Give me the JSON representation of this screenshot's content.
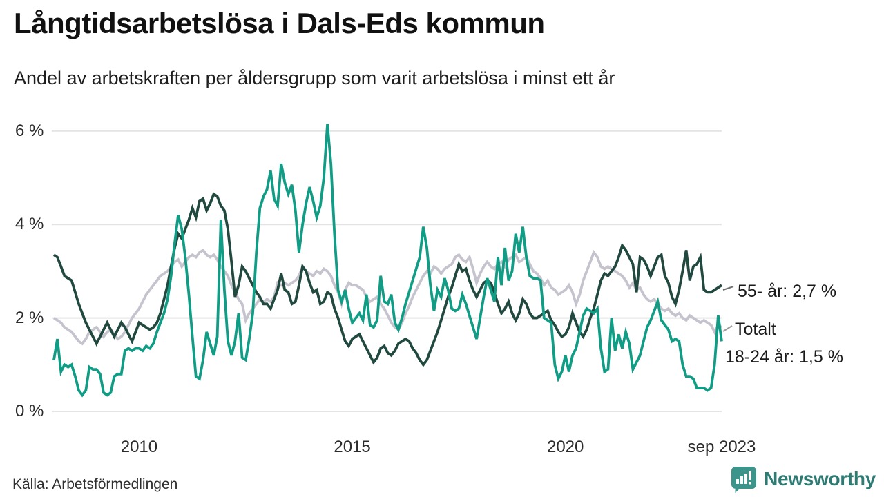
{
  "header": {
    "title": "Långtidsarbetslösa i Dals-Eds kommun",
    "subtitle": "Andel av arbetskraften per åldersgrupp som varit arbetslösa i minst ett år"
  },
  "source": {
    "label": "Källa: Arbetsförmedlingen"
  },
  "brand": {
    "name": "Newsworthy",
    "logo_icon": "speech-bubble-bar-chart-icon",
    "logo_bubble_color": "#3d948b",
    "logo_text_color": "#2e7b74"
  },
  "chart_data": {
    "type": "line",
    "title": "Långtidsarbetslösa i Dals-Eds kommun",
    "x_frequency": "monthly",
    "x_start": "2008-01",
    "x_end": "2023-09",
    "ylim": [
      0,
      6.5
    ],
    "grid": "horizontal-only",
    "legend_position": "right-edge-annotations",
    "colors": {
      "grid": "#e4e4e4",
      "axis_text": "#2b2b2b"
    },
    "y_ticks": [
      {
        "value": 0,
        "label": "0 %"
      },
      {
        "value": 2,
        "label": "2 %"
      },
      {
        "value": 4,
        "label": "4 %"
      },
      {
        "value": 6,
        "label": "6 %"
      }
    ],
    "x_ticks": [
      {
        "month_index": 24,
        "label": "2010"
      },
      {
        "month_index": 84,
        "label": "2015"
      },
      {
        "month_index": 144,
        "label": "2020"
      },
      {
        "month_index": 188,
        "label": "sep 2023"
      }
    ],
    "series": [
      {
        "id": "total",
        "name": "Totalt",
        "color": "#c5c4ce",
        "annotation": "Totalt",
        "values": [
          2.0,
          1.95,
          1.9,
          1.8,
          1.75,
          1.7,
          1.6,
          1.5,
          1.45,
          1.55,
          1.7,
          1.75,
          1.8,
          1.7,
          1.6,
          1.7,
          1.75,
          1.65,
          1.55,
          1.6,
          1.7,
          1.85,
          2.0,
          2.1,
          2.2,
          2.35,
          2.5,
          2.6,
          2.7,
          2.8,
          2.9,
          2.95,
          3.0,
          3.1,
          3.2,
          3.25,
          3.1,
          3.2,
          3.3,
          3.35,
          3.3,
          3.4,
          3.45,
          3.35,
          3.3,
          3.35,
          3.25,
          3.1,
          3.0,
          2.9,
          2.7,
          2.55,
          2.4,
          2.3,
          1.95,
          2.1,
          2.2,
          2.3,
          2.4,
          2.35,
          2.4,
          2.35,
          2.45,
          2.75,
          2.7,
          2.75,
          2.7,
          2.75,
          2.8,
          2.9,
          3.1,
          3.0,
          2.95,
          2.9,
          3.0,
          2.95,
          3.05,
          3.0,
          2.9,
          2.7,
          2.55,
          2.3,
          2.6,
          2.75,
          2.7,
          2.7,
          2.65,
          2.6,
          2.45,
          2.35,
          2.4,
          2.45,
          2.3,
          2.2,
          2.05,
          1.9,
          1.8,
          1.75,
          1.9,
          2.1,
          2.25,
          2.45,
          2.6,
          2.75,
          2.9,
          3.0,
          2.95,
          3.1,
          3.05,
          2.95,
          3.05,
          3.1,
          3.15,
          3.3,
          3.35,
          3.25,
          3.2,
          3.3,
          3.05,
          2.75,
          2.95,
          3.1,
          3.2,
          3.1,
          3.05,
          3.15,
          3.2,
          3.1,
          3.25,
          3.3,
          3.35,
          3.2,
          3.25,
          3.3,
          3.15,
          3.0,
          2.95,
          2.85,
          2.7,
          2.8,
          2.65,
          2.6,
          2.5,
          2.55,
          2.6,
          2.7,
          2.55,
          2.3,
          2.5,
          2.8,
          3.0,
          3.2,
          3.4,
          3.3,
          3.1,
          3.05,
          3.1,
          3.05,
          3.0,
          2.95,
          2.9,
          2.8,
          2.65,
          2.75,
          2.6,
          2.65,
          2.5,
          2.4,
          2.35,
          2.4,
          2.3,
          2.2,
          2.15,
          2.2,
          2.1,
          2.05,
          2.1,
          2.0,
          1.95,
          2.05,
          2.0,
          1.95,
          1.9,
          1.95,
          1.9,
          1.85,
          1.7,
          1.85,
          1.8
        ]
      },
      {
        "id": "55plus",
        "name": "55- år",
        "color": "#21493f",
        "annotation": "55- år: 2,7 %",
        "end_value_label": "2,7 %",
        "values": [
          3.35,
          3.3,
          3.1,
          2.9,
          2.85,
          2.8,
          2.55,
          2.3,
          2.1,
          1.9,
          1.75,
          1.6,
          1.45,
          1.6,
          1.75,
          1.9,
          1.75,
          1.6,
          1.75,
          1.9,
          1.8,
          1.65,
          1.5,
          1.7,
          1.9,
          1.85,
          1.8,
          1.75,
          1.8,
          1.9,
          2.1,
          2.4,
          2.7,
          3.1,
          3.5,
          3.8,
          3.7,
          3.9,
          4.1,
          4.35,
          4.15,
          4.5,
          4.55,
          4.3,
          4.45,
          4.65,
          4.6,
          4.4,
          4.3,
          3.9,
          3.2,
          2.45,
          2.7,
          3.1,
          3.0,
          2.85,
          2.7,
          2.55,
          2.45,
          2.3,
          2.3,
          2.2,
          2.4,
          2.6,
          2.95,
          2.6,
          2.55,
          2.3,
          2.35,
          2.7,
          3.1,
          3.0,
          2.75,
          2.55,
          2.6,
          2.3,
          2.35,
          2.55,
          2.5,
          2.2,
          2.0,
          1.75,
          1.5,
          1.4,
          1.55,
          1.6,
          1.65,
          1.5,
          1.35,
          1.2,
          1.05,
          1.15,
          1.35,
          1.4,
          1.25,
          1.2,
          1.3,
          1.45,
          1.5,
          1.55,
          1.5,
          1.35,
          1.25,
          1.1,
          1.0,
          1.1,
          1.3,
          1.5,
          1.7,
          1.95,
          2.2,
          2.45,
          2.65,
          2.9,
          3.15,
          3.0,
          3.05,
          2.8,
          2.6,
          2.45,
          2.6,
          2.75,
          2.8,
          2.75,
          2.55,
          2.3,
          2.1,
          2.2,
          2.35,
          2.1,
          1.95,
          2.1,
          2.4,
          2.3,
          2.1,
          2.0,
          2.0,
          2.05,
          2.1,
          2.15,
          1.95,
          1.85,
          1.7,
          1.6,
          1.65,
          1.8,
          2.1,
          1.9,
          1.7,
          1.6,
          1.75,
          2.0,
          2.2,
          2.5,
          2.8,
          2.95,
          2.9,
          3.0,
          3.1,
          3.3,
          3.55,
          3.45,
          3.3,
          3.15,
          2.55,
          3.3,
          3.25,
          3.1,
          2.9,
          3.1,
          3.3,
          3.35,
          2.9,
          2.75,
          2.45,
          2.3,
          2.6,
          3.0,
          3.45,
          2.8,
          3.1,
          3.15,
          3.3,
          2.6,
          2.55,
          2.55,
          2.6,
          2.65,
          2.7
        ]
      },
      {
        "id": "18-24",
        "name": "18-24 år",
        "color": "#119c85",
        "annotation": "18-24 år: 1,5 %",
        "end_value_label": "1,5 %",
        "values": [
          1.1,
          1.55,
          0.85,
          1.0,
          0.95,
          1.0,
          0.75,
          0.45,
          0.35,
          0.45,
          0.95,
          0.9,
          0.9,
          0.8,
          0.4,
          0.35,
          0.4,
          0.75,
          0.8,
          0.8,
          1.3,
          1.35,
          1.3,
          1.35,
          1.35,
          1.3,
          1.4,
          1.35,
          1.45,
          1.7,
          1.9,
          2.1,
          2.4,
          2.9,
          3.6,
          4.2,
          3.9,
          3.3,
          2.5,
          1.6,
          0.75,
          0.7,
          1.1,
          1.7,
          1.45,
          1.2,
          1.6,
          4.1,
          2.6,
          1.5,
          1.2,
          1.5,
          2.1,
          1.15,
          1.1,
          1.55,
          2.1,
          3.4,
          4.35,
          4.6,
          4.75,
          5.15,
          4.55,
          4.4,
          5.3,
          4.9,
          4.65,
          4.85,
          4.3,
          3.4,
          4.0,
          4.45,
          4.8,
          4.5,
          4.15,
          4.4,
          5.0,
          6.15,
          5.3,
          3.8,
          2.6,
          2.35,
          2.6,
          2.2,
          1.9,
          2.0,
          2.1,
          1.95,
          2.5,
          1.85,
          1.8,
          1.95,
          2.9,
          2.35,
          2.3,
          2.5,
          1.9,
          1.75,
          2.0,
          2.3,
          2.55,
          2.8,
          3.05,
          3.3,
          3.95,
          3.5,
          2.7,
          2.15,
          2.6,
          2.45,
          2.85,
          2.6,
          2.2,
          2.15,
          2.2,
          2.5,
          2.3,
          2.05,
          1.8,
          1.55,
          2.0,
          2.45,
          2.85,
          2.6,
          2.35,
          3.3,
          2.7,
          3.5,
          2.8,
          3.0,
          3.8,
          3.4,
          3.95,
          3.3,
          2.9,
          2.85,
          2.85,
          2.8,
          2.0,
          1.95,
          1.9,
          1.0,
          0.7,
          0.85,
          1.2,
          0.85,
          1.2,
          1.35,
          1.7,
          2.05,
          2.2,
          2.15,
          2.1,
          2.2,
          1.35,
          0.85,
          0.9,
          2.0,
          1.3,
          1.65,
          1.35,
          1.7,
          1.45,
          0.9,
          1.05,
          1.2,
          1.5,
          1.8,
          1.95,
          2.15,
          2.35,
          1.95,
          1.85,
          1.75,
          1.5,
          1.55,
          1.5,
          1.0,
          0.75,
          0.75,
          0.7,
          0.5,
          0.5,
          0.5,
          0.45,
          0.5,
          1.0,
          2.05,
          1.5
        ]
      }
    ]
  }
}
